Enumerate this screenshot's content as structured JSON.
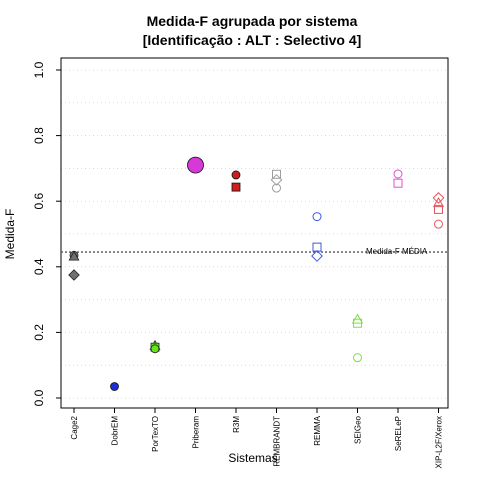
{
  "chart_data": {
    "type": "scatter",
    "title": "Medida-F agrupada por sistema",
    "subtitle": "[Identificação : ALT : Selectivo 4]",
    "xlabel": "Sistemas",
    "ylabel": "Medida-F",
    "ylim": [
      0,
      1
    ],
    "yticks": [
      0.0,
      0.2,
      0.4,
      0.6,
      0.8,
      1.0
    ],
    "ytick_labels": [
      "0.0",
      "0.2",
      "0.4",
      "0.6",
      "0.8",
      "1.0"
    ],
    "grid": true,
    "categories": [
      "Cage2",
      "DobrEM",
      "PorTexTO",
      "Priberam",
      "R3M",
      "REMBRANDT",
      "REMMA",
      "SEIGeo",
      "SeRELeP",
      "XIP-L2F/Xerox"
    ],
    "reference_line": {
      "label": "Medida-F MÉDIA",
      "value": 0.445
    },
    "points": [
      {
        "category": "Cage2",
        "y": 0.435,
        "shape": "circle",
        "filled": true,
        "color": "#707070"
      },
      {
        "category": "Cage2",
        "y": 0.432,
        "shape": "triangle",
        "filled": true,
        "color": "#707070"
      },
      {
        "category": "Cage2",
        "y": 0.375,
        "shape": "diamond",
        "filled": true,
        "color": "#707070"
      },
      {
        "category": "DobrEM",
        "y": 0.035,
        "shape": "circle",
        "filled": true,
        "color": "#1a2fd6"
      },
      {
        "category": "PorTexTO",
        "y": 0.16,
        "shape": "triangle",
        "filled": true,
        "color": "#66e61a"
      },
      {
        "category": "PorTexTO",
        "y": 0.155,
        "shape": "square",
        "filled": true,
        "color": "#66e61a"
      },
      {
        "category": "PorTexTO",
        "y": 0.15,
        "shape": "circle",
        "filled": true,
        "color": "#66e61a"
      },
      {
        "category": "Priberam",
        "y": 0.71,
        "shape": "circle",
        "filled": true,
        "color": "#d63ad6",
        "size": "large"
      },
      {
        "category": "R3M",
        "y": 0.68,
        "shape": "circle",
        "filled": true,
        "color": "#cc1f1f"
      },
      {
        "category": "R3M",
        "y": 0.643,
        "shape": "square",
        "filled": true,
        "color": "#cc1f1f"
      },
      {
        "category": "REMBRANDT",
        "y": 0.682,
        "shape": "square",
        "filled": false,
        "color": "#9e9e9e"
      },
      {
        "category": "REMBRANDT",
        "y": 0.665,
        "shape": "diamond",
        "filled": false,
        "color": "#9e9e9e"
      },
      {
        "category": "REMBRANDT",
        "y": 0.64,
        "shape": "circle",
        "filled": false,
        "color": "#9e9e9e"
      },
      {
        "category": "REMMA",
        "y": 0.553,
        "shape": "circle",
        "filled": false,
        "color": "#3b5bdb"
      },
      {
        "category": "REMMA",
        "y": 0.46,
        "shape": "square",
        "filled": false,
        "color": "#3b5bdb"
      },
      {
        "category": "REMMA",
        "y": 0.433,
        "shape": "diamond",
        "filled": false,
        "color": "#3b5bdb"
      },
      {
        "category": "SEIGeo",
        "y": 0.24,
        "shape": "triangle",
        "filled": false,
        "color": "#7be33a"
      },
      {
        "category": "SEIGeo",
        "y": 0.228,
        "shape": "square",
        "filled": false,
        "color": "#7be33a"
      },
      {
        "category": "SEIGeo",
        "y": 0.123,
        "shape": "circle",
        "filled": false,
        "color": "#7be33a"
      },
      {
        "category": "SeRELeP",
        "y": 0.683,
        "shape": "circle",
        "filled": false,
        "color": "#e04fd0"
      },
      {
        "category": "SeRELeP",
        "y": 0.655,
        "shape": "square",
        "filled": false,
        "color": "#e04fd0"
      },
      {
        "category": "XIP-L2F/Xerox",
        "y": 0.61,
        "shape": "diamond",
        "filled": false,
        "color": "#e8545b"
      },
      {
        "category": "XIP-L2F/Xerox",
        "y": 0.595,
        "shape": "triangle",
        "filled": false,
        "color": "#e8545b"
      },
      {
        "category": "XIP-L2F/Xerox",
        "y": 0.575,
        "shape": "square",
        "filled": false,
        "color": "#e8545b"
      },
      {
        "category": "XIP-L2F/Xerox",
        "y": 0.53,
        "shape": "circle",
        "filled": false,
        "color": "#e8545b"
      }
    ]
  }
}
